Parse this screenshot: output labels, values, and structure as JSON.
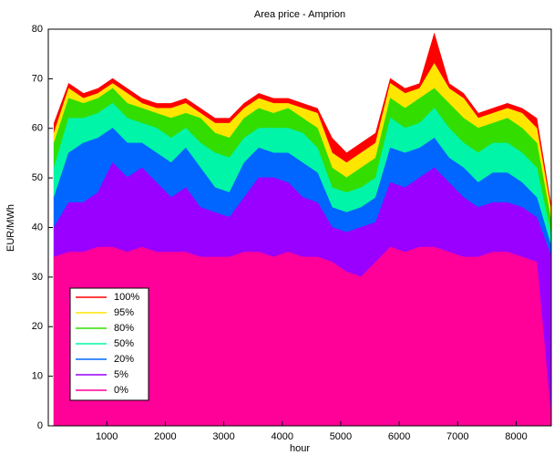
{
  "chart_data": {
    "type": "area",
    "title": "Area price - Amprion",
    "x_label": "hour",
    "y_label": "EUR/MWh",
    "x": [
      100,
      350,
      600,
      850,
      1100,
      1350,
      1600,
      1850,
      2100,
      2350,
      2600,
      2850,
      3100,
      3350,
      3600,
      3850,
      4100,
      4350,
      4600,
      4850,
      5100,
      5350,
      5600,
      5850,
      6100,
      6350,
      6600,
      6850,
      7100,
      7350,
      7600,
      7850,
      8100,
      8350,
      8600
    ],
    "series": [
      {
        "name": "100%",
        "color": "#ff0000",
        "values": [
          61,
          69,
          67,
          68,
          70,
          68,
          66,
          65,
          65,
          66,
          64,
          62,
          62,
          65,
          67,
          66,
          66,
          65,
          64,
          58,
          55,
          57,
          59,
          70,
          68,
          69,
          79,
          69,
          67,
          63,
          64,
          65,
          64,
          62,
          44
        ]
      },
      {
        "name": "95%",
        "color": "#ffe600",
        "values": [
          59,
          68,
          66,
          67,
          69,
          67,
          65,
          64,
          64,
          65,
          63,
          61,
          61,
          64,
          66,
          65,
          65,
          64,
          63,
          55,
          53,
          55,
          57,
          69,
          67,
          68,
          73,
          68,
          66,
          62,
          63,
          64,
          63,
          60,
          43
        ]
      },
      {
        "name": "80%",
        "color": "#33dd00",
        "values": [
          57,
          66,
          65,
          66,
          68,
          65,
          64,
          63,
          62,
          63,
          62,
          59,
          58,
          62,
          64,
          63,
          64,
          62,
          60,
          52,
          50,
          52,
          54,
          66,
          64,
          66,
          68,
          65,
          62,
          60,
          61,
          62,
          60,
          57,
          41
        ]
      },
      {
        "name": "50%",
        "color": "#00f5a8",
        "values": [
          52,
          62,
          62,
          63,
          65,
          62,
          61,
          60,
          58,
          60,
          57,
          55,
          54,
          58,
          60,
          60,
          60,
          59,
          56,
          48,
          47,
          48,
          50,
          62,
          60,
          61,
          64,
          60,
          57,
          55,
          57,
          57,
          55,
          52,
          38
        ]
      },
      {
        "name": "20%",
        "color": "#0066ff",
        "values": [
          46,
          55,
          57,
          58,
          60,
          57,
          57,
          55,
          53,
          56,
          52,
          48,
          47,
          53,
          56,
          55,
          55,
          53,
          51,
          44,
          43,
          44,
          46,
          56,
          55,
          56,
          58,
          54,
          52,
          49,
          51,
          51,
          49,
          46,
          36
        ]
      },
      {
        "name": "5%",
        "color": "#9900ff",
        "values": [
          40,
          45,
          45,
          47,
          53,
          50,
          52,
          49,
          46,
          48,
          44,
          43,
          42,
          46,
          50,
          50,
          49,
          46,
          45,
          40,
          39,
          40,
          41,
          49,
          48,
          50,
          52,
          49,
          46,
          44,
          45,
          45,
          44,
          42,
          34
        ]
      },
      {
        "name": "0%",
        "color": "#ff0099",
        "values": [
          34,
          35,
          35,
          36,
          36,
          35,
          36,
          35,
          35,
          35,
          34,
          34,
          34,
          35,
          35,
          34,
          35,
          34,
          34,
          33,
          31,
          30,
          33,
          36,
          35,
          36,
          36,
          35,
          34,
          34,
          35,
          35,
          34,
          33,
          1
        ]
      }
    ],
    "xlim": [
      0,
      8600
    ],
    "ylim": [
      0,
      80
    ],
    "xticks": [
      1000,
      2000,
      3000,
      4000,
      5000,
      6000,
      7000,
      8000
    ],
    "yticks": [
      0,
      10,
      20,
      30,
      40,
      50,
      60,
      70,
      80
    ]
  }
}
